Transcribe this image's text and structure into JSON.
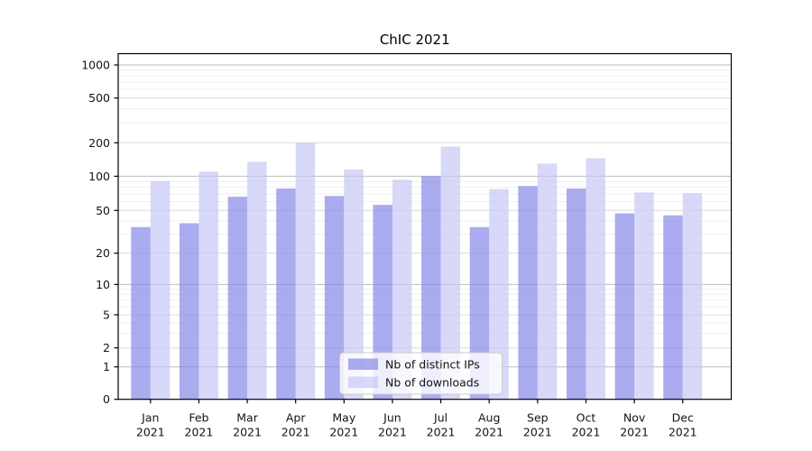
{
  "chart_data": {
    "type": "bar",
    "title": "ChIC 2021",
    "year_label": "2021",
    "months": [
      "Jan",
      "Feb",
      "Mar",
      "Apr",
      "May",
      "Jun",
      "Jul",
      "Aug",
      "Sep",
      "Oct",
      "Nov",
      "Dec"
    ],
    "series": [
      {
        "name": "Nb of distinct IPs",
        "color": "#8888e8",
        "fill_opacity": 0.7,
        "values": [
          35,
          38,
          66,
          78,
          67,
          56,
          100,
          35,
          82,
          78,
          47,
          45
        ]
      },
      {
        "name": "Nb of downloads",
        "color": "#c7c7f5",
        "fill_opacity": 0.7,
        "values": [
          91,
          110,
          135,
          200,
          115,
          93,
          185,
          77,
          130,
          145,
          72,
          71
        ]
      }
    ],
    "y_axis": {
      "ticks": [
        0,
        1,
        2,
        5,
        10,
        20,
        50,
        100,
        200,
        500,
        1000
      ],
      "scale": "log-like (symlog/asinh) including 0",
      "range": [
        0,
        1300
      ]
    },
    "legend": {
      "position": "lower center"
    },
    "grid": true
  }
}
